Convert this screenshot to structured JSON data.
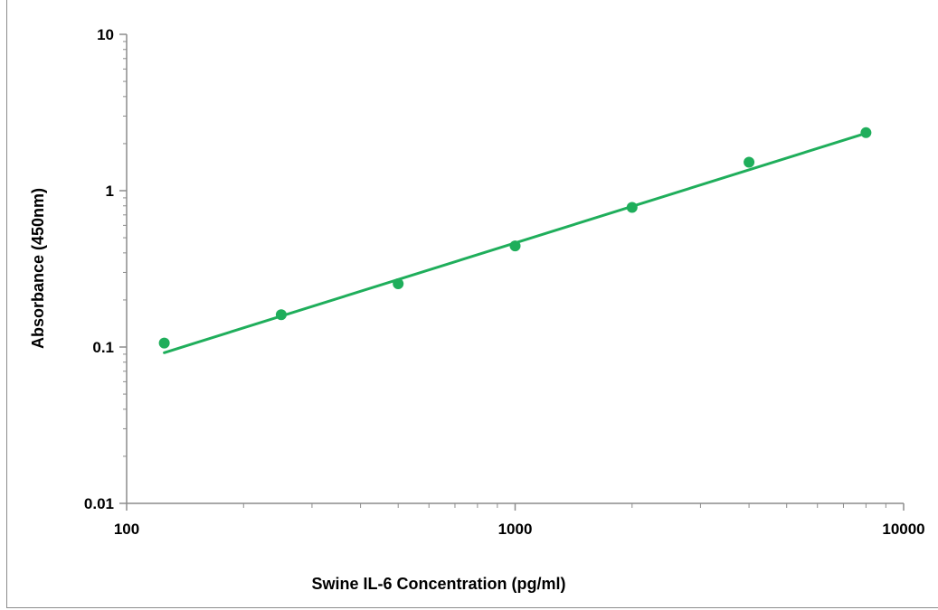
{
  "chart_data": {
    "type": "scatter",
    "title": "",
    "xlabel": "Swine IL-6 Concentration (pg/ml)",
    "ylabel": "Absorbance (450nm)",
    "xscale": "log",
    "yscale": "log",
    "xlim": [
      100,
      10000
    ],
    "ylim": [
      0.01,
      10
    ],
    "grid": false,
    "x_ticks": [
      "100",
      "1000",
      "10000"
    ],
    "y_ticks": [
      "0.01",
      "0.1",
      "1",
      "10"
    ],
    "color": "#1fae5b",
    "series": [
      {
        "x": [
          125,
          250,
          500,
          1000,
          2000,
          4000,
          8000
        ],
        "y": [
          0.106,
          0.161,
          0.254,
          0.443,
          0.782,
          1.52,
          2.35
        ]
      }
    ],
    "trendline": {
      "type": "power",
      "from": [
        125,
        0.092
      ],
      "to": [
        8000,
        2.33
      ]
    }
  }
}
